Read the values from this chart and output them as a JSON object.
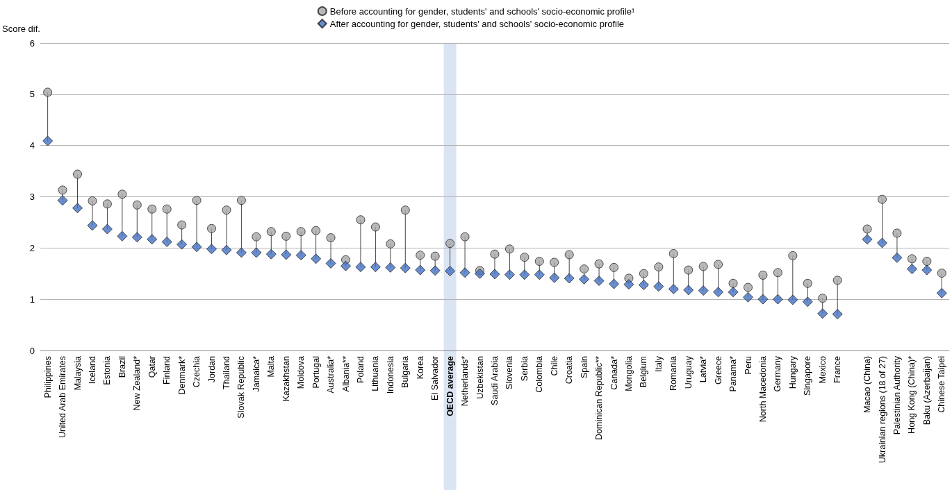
{
  "chart_data": {
    "type": "scatter",
    "ylabel": "Score dif.",
    "categories": [
      "Philippines",
      "United Arab Emirates",
      "Malaysia",
      "Iceland",
      "Estonia",
      "Brazil",
      "New Zealand*",
      "Qatar",
      "Finland",
      "Denmark*",
      "Czechia",
      "Jordan",
      "Thailand",
      "Slovak Republic",
      "Jamaica*",
      "Malta",
      "Kazakhstan",
      "Moldova",
      "Portugal",
      "Australia*",
      "Albania**",
      "Poland",
      "Lithuania",
      "Indonesia",
      "Bulgaria",
      "Korea",
      "El Salvador",
      "OECD average",
      "Netherlands*",
      "Uzbekistan",
      "Saudi Arabia",
      "Slovenia",
      "Serbia",
      "Colombia",
      "Chile",
      "Croatia",
      "Spain",
      "Dominican Republic**",
      "Canada*",
      "Mongolia",
      "Belgium",
      "Italy",
      "Romania",
      "Uruguay",
      "Latvia*",
      "Greece",
      "Panama*",
      "Peru",
      "North Macedonia",
      "Germany",
      "Hungary",
      "Singapore",
      "Mexico",
      "France",
      null,
      "Macao (China)",
      "Ukrainian regions (18 of 27)",
      "Palestinian Authority",
      "Hong Kong (China)*",
      "Baku (Azerbaijan)",
      "Chinese Taipei"
    ],
    "series": [
      {
        "name": "Before accounting for gender, students' and schools' socio-economic profile¹",
        "color": "#a6a6a6",
        "marker": "circle",
        "values": [
          5.04,
          3.13,
          3.44,
          2.92,
          2.86,
          3.05,
          2.84,
          2.76,
          2.76,
          2.45,
          2.93,
          2.38,
          2.74,
          2.93,
          2.22,
          2.32,
          2.23,
          2.32,
          2.34,
          2.2,
          1.77,
          2.55,
          2.41,
          2.08,
          2.74,
          1.86,
          1.84,
          2.09,
          2.22,
          1.56,
          1.88,
          1.98,
          1.82,
          1.74,
          1.72,
          1.87,
          1.59,
          1.69,
          1.62,
          1.41,
          1.5,
          1.63,
          1.89,
          1.57,
          1.64,
          1.68,
          1.31,
          1.23,
          1.47,
          1.52,
          1.85,
          1.31,
          1.02,
          1.37,
          null,
          2.37,
          2.95,
          2.29,
          1.79,
          1.74,
          1.51
        ]
      },
      {
        "name": "After accounting for gender, students' and schools' socio-economic profile",
        "color": "#4472c4",
        "marker": "diamond",
        "values": [
          4.09,
          2.93,
          2.78,
          2.44,
          2.37,
          2.23,
          2.21,
          2.17,
          2.12,
          2.07,
          2.02,
          1.98,
          1.96,
          1.91,
          1.91,
          1.88,
          1.87,
          1.86,
          1.79,
          1.7,
          1.65,
          1.63,
          1.63,
          1.62,
          1.61,
          1.57,
          1.56,
          1.55,
          1.52,
          1.5,
          1.49,
          1.48,
          1.48,
          1.48,
          1.42,
          1.41,
          1.39,
          1.36,
          1.3,
          1.29,
          1.28,
          1.25,
          1.2,
          1.18,
          1.17,
          1.14,
          1.14,
          1.04,
          1.0,
          1.0,
          0.99,
          0.95,
          0.72,
          0.71,
          null,
          2.17,
          2.1,
          1.81,
          1.59,
          1.57,
          1.12
        ]
      }
    ],
    "ylim": [
      0,
      6
    ],
    "yticks": [
      0,
      1,
      2,
      3,
      4,
      5,
      6
    ],
    "grid": "y",
    "legend": "top",
    "bands": [
      {
        "axis": "x",
        "from": "OECD average",
        "to": "OECD average",
        "color": "#dae4f2"
      }
    ]
  }
}
